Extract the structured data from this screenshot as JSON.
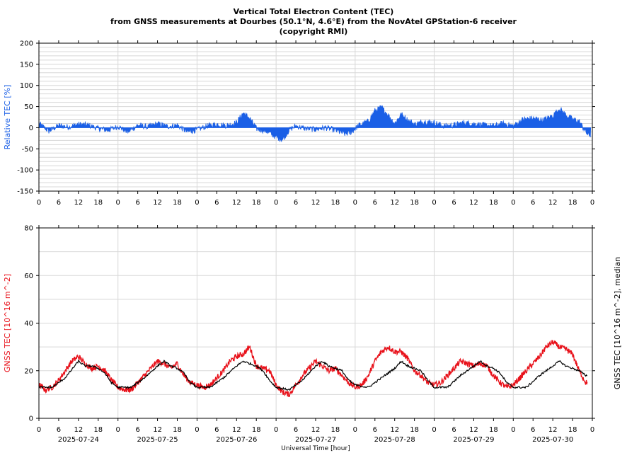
{
  "title": {
    "line1": "Vertical Total Electron Content (TEC)",
    "line2": "from GNSS measurements at Dourbes (50.1°N, 4.6°E) from the NovAtel GPStation-6 receiver",
    "line3": "(copyright RMI)"
  },
  "colors": {
    "relative": "#1a5fe6",
    "tec": "#e8111a",
    "median": "#000000",
    "grid": "#d8d8d8"
  },
  "chart_data": [
    {
      "type": "area",
      "ylabel": "Relative TEC [%]",
      "ylim": [
        -150,
        200
      ],
      "yticks": [
        -150,
        -100,
        -50,
        0,
        50,
        100,
        150,
        200
      ],
      "xlim": [
        0,
        168
      ],
      "hour_ticks": [
        "0",
        "6",
        "12",
        "18",
        "0",
        "6",
        "12",
        "18",
        "0",
        "6",
        "12",
        "18",
        "0",
        "6",
        "12",
        "18",
        "0",
        "6",
        "12",
        "18",
        "0",
        "6",
        "12",
        "18",
        "0",
        "6",
        "12",
        "18",
        "0"
      ],
      "grid": true,
      "series": [
        {
          "values": [
            [
              0,
              10
            ],
            [
              3,
              -8
            ],
            [
              6,
              5
            ],
            [
              9,
              2
            ],
            [
              12,
              8
            ],
            [
              15,
              6
            ],
            [
              18,
              -2
            ],
            [
              21,
              -6
            ],
            [
              24,
              3
            ],
            [
              27,
              -10
            ],
            [
              30,
              6
            ],
            [
              33,
              2
            ],
            [
              36,
              9
            ],
            [
              39,
              3
            ],
            [
              42,
              6
            ],
            [
              45,
              -10
            ],
            [
              48,
              -5
            ],
            [
              51,
              4
            ],
            [
              54,
              8
            ],
            [
              57,
              5
            ],
            [
              60,
              12
            ],
            [
              62,
              35
            ],
            [
              64,
              22
            ],
            [
              66,
              -2
            ],
            [
              69,
              -8
            ],
            [
              72,
              -22
            ],
            [
              74,
              -28
            ],
            [
              76,
              -5
            ],
            [
              78,
              4
            ],
            [
              81,
              -2
            ],
            [
              84,
              -4
            ],
            [
              87,
              0
            ],
            [
              90,
              -6
            ],
            [
              93,
              -15
            ],
            [
              95,
              -10
            ],
            [
              97,
              5
            ],
            [
              100,
              15
            ],
            [
              102,
              40
            ],
            [
              104,
              48
            ],
            [
              106,
              30
            ],
            [
              108,
              10
            ],
            [
              110,
              32
            ],
            [
              112,
              18
            ],
            [
              114,
              8
            ],
            [
              117,
              15
            ],
            [
              120,
              12
            ],
            [
              123,
              4
            ],
            [
              126,
              6
            ],
            [
              129,
              12
            ],
            [
              132,
              9
            ],
            [
              135,
              6
            ],
            [
              138,
              4
            ],
            [
              141,
              10
            ],
            [
              144,
              4
            ],
            [
              147,
              20
            ],
            [
              150,
              22
            ],
            [
              153,
              18
            ],
            [
              156,
              28
            ],
            [
              158,
              45
            ],
            [
              160,
              30
            ],
            [
              162,
              20
            ],
            [
              164,
              15
            ],
            [
              166,
              -10
            ],
            [
              167,
              -18
            ]
          ]
        }
      ]
    },
    {
      "type": "line",
      "ylabel": "GNSS TEC [10^16 m^-2]",
      "y2label": "GNSS TEC [10^16 m^-2], median",
      "xlabel": "Universal Time [hour]",
      "ylim": [
        0,
        80
      ],
      "yticks": [
        0,
        20,
        40,
        60,
        80
      ],
      "xlim": [
        0,
        168
      ],
      "hour_ticks": [
        "0",
        "6",
        "12",
        "18",
        "0",
        "6",
        "12",
        "18",
        "0",
        "6",
        "12",
        "18",
        "0",
        "6",
        "12",
        "18",
        "0",
        "6",
        "12",
        "18",
        "0",
        "6",
        "12",
        "18",
        "0",
        "6",
        "12",
        "18",
        "0"
      ],
      "categories": [
        "2025-07-24",
        "2025-07-25",
        "2025-07-26",
        "2025-07-27",
        "2025-07-28",
        "2025-07-29",
        "2025-07-30"
      ],
      "grid": true,
      "series": [
        {
          "values": [
            [
              0,
              14
            ],
            [
              2,
              12
            ],
            [
              4,
              13
            ],
            [
              6,
              16
            ],
            [
              8,
              20
            ],
            [
              10,
              24
            ],
            [
              12,
              26
            ],
            [
              14,
              23
            ],
            [
              16,
              21
            ],
            [
              18,
              22
            ],
            [
              20,
              20
            ],
            [
              22,
              16
            ],
            [
              24,
              13
            ],
            [
              26,
              12
            ],
            [
              28,
              12
            ],
            [
              30,
              15
            ],
            [
              32,
              18
            ],
            [
              34,
              21
            ],
            [
              36,
              24
            ],
            [
              38,
              23
            ],
            [
              40,
              21
            ],
            [
              42,
              23
            ],
            [
              44,
              18
            ],
            [
              46,
              15
            ],
            [
              48,
              14
            ],
            [
              50,
              13
            ],
            [
              52,
              14
            ],
            [
              54,
              17
            ],
            [
              56,
              20
            ],
            [
              58,
              24
            ],
            [
              60,
              26
            ],
            [
              62,
              27
            ],
            [
              64,
              30
            ],
            [
              66,
              22
            ],
            [
              68,
              21
            ],
            [
              70,
              20
            ],
            [
              72,
              14
            ],
            [
              74,
              11
            ],
            [
              76,
              10
            ],
            [
              78,
              14
            ],
            [
              80,
              18
            ],
            [
              82,
              21
            ],
            [
              84,
              24
            ],
            [
              86,
              22
            ],
            [
              88,
              20
            ],
            [
              90,
              21
            ],
            [
              92,
              18
            ],
            [
              94,
              15
            ],
            [
              96,
              13
            ],
            [
              98,
              14
            ],
            [
              100,
              18
            ],
            [
              102,
              24
            ],
            [
              104,
              28
            ],
            [
              106,
              30
            ],
            [
              108,
              28
            ],
            [
              110,
              28
            ],
            [
              112,
              25
            ],
            [
              114,
              20
            ],
            [
              116,
              18
            ],
            [
              118,
              15
            ],
            [
              120,
              14
            ],
            [
              122,
              15
            ],
            [
              124,
              18
            ],
            [
              126,
              21
            ],
            [
              128,
              24
            ],
            [
              130,
              23
            ],
            [
              132,
              22
            ],
            [
              134,
              23
            ],
            [
              136,
              22
            ],
            [
              138,
              18
            ],
            [
              140,
              15
            ],
            [
              142,
              13
            ],
            [
              144,
              14
            ],
            [
              146,
              17
            ],
            [
              148,
              20
            ],
            [
              150,
              23
            ],
            [
              152,
              26
            ],
            [
              154,
              30
            ],
            [
              156,
              32
            ],
            [
              158,
              30
            ],
            [
              160,
              29
            ],
            [
              162,
              27
            ],
            [
              164,
              20
            ],
            [
              166,
              15
            ]
          ]
        },
        {
          "values": [
            [
              0,
              13
            ],
            [
              4,
              13
            ],
            [
              8,
              17
            ],
            [
              12,
              24
            ],
            [
              14,
              22
            ],
            [
              16,
              22
            ],
            [
              18,
              21
            ],
            [
              20,
              19
            ],
            [
              22,
              15
            ],
            [
              24,
              13
            ],
            [
              28,
              13
            ],
            [
              32,
              17
            ],
            [
              36,
              22
            ],
            [
              38,
              24
            ],
            [
              40,
              22
            ],
            [
              42,
              21
            ],
            [
              44,
              19
            ],
            [
              46,
              15
            ],
            [
              48,
              13
            ],
            [
              52,
              13
            ],
            [
              56,
              17
            ],
            [
              60,
              22
            ],
            [
              62,
              24
            ],
            [
              64,
              23
            ],
            [
              66,
              22
            ],
            [
              68,
              20
            ],
            [
              70,
              16
            ],
            [
              72,
              13
            ],
            [
              76,
              12
            ],
            [
              80,
              16
            ],
            [
              84,
              22
            ],
            [
              86,
              24
            ],
            [
              88,
              22
            ],
            [
              90,
              21
            ],
            [
              92,
              20
            ],
            [
              94,
              16
            ],
            [
              96,
              14
            ],
            [
              100,
              13
            ],
            [
              104,
              17
            ],
            [
              108,
              21
            ],
            [
              110,
              24
            ],
            [
              112,
              22
            ],
            [
              114,
              21
            ],
            [
              116,
              20
            ],
            [
              118,
              16
            ],
            [
              120,
              13
            ],
            [
              124,
              13
            ],
            [
              128,
              18
            ],
            [
              132,
              22
            ],
            [
              134,
              24
            ],
            [
              136,
              22
            ],
            [
              138,
              21
            ],
            [
              140,
              19
            ],
            [
              142,
              15
            ],
            [
              144,
              13
            ],
            [
              148,
              13
            ],
            [
              152,
              18
            ],
            [
              156,
              22
            ],
            [
              158,
              24
            ],
            [
              160,
              22
            ],
            [
              162,
              21
            ],
            [
              164,
              20
            ],
            [
              166,
              18
            ]
          ]
        }
      ]
    }
  ]
}
